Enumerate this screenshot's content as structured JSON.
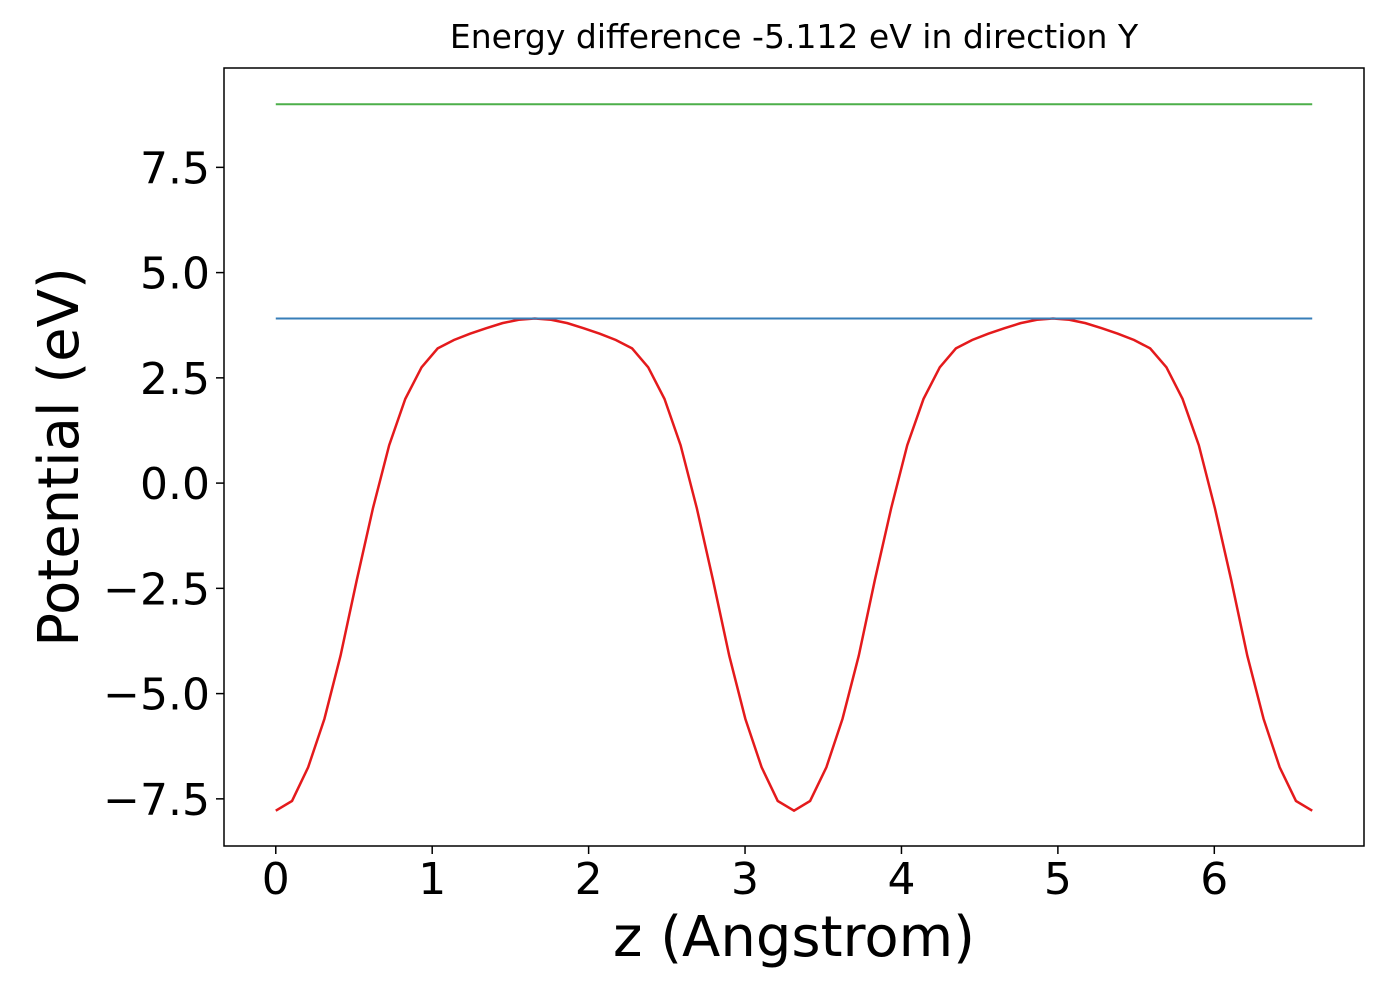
{
  "chart_data": {
    "type": "line",
    "title": "Energy difference -5.112 eV in direction Y",
    "xlabel": "z (Angstrom)",
    "ylabel": "Potential (eV)",
    "xlim": [
      -0.331,
      6.957
    ],
    "ylim": [
      -8.62,
      9.86
    ],
    "xticks": [
      0,
      1,
      2,
      3,
      4,
      5,
      6
    ],
    "yticks": [
      {
        "value": -7.5,
        "label": "−7.5"
      },
      {
        "value": -5,
        "label": "−5.0"
      },
      {
        "value": -2.5,
        "label": "−2.5"
      },
      {
        "value": 0,
        "label": "0.0"
      },
      2.5,
      {
        "value": 5,
        "label": "5.0"
      },
      7.5
    ],
    "grid": false,
    "series": [
      {
        "color": "#e41a1c",
        "x": [
          0,
          0.104,
          0.207,
          0.311,
          0.414,
          0.518,
          0.621,
          0.725,
          0.828,
          0.932,
          1.035,
          1.139,
          1.242,
          1.346,
          1.449,
          1.553,
          1.656,
          1.76,
          1.864,
          1.967,
          2.071,
          2.174,
          2.278,
          2.381,
          2.485,
          2.588,
          2.692,
          2.795,
          2.899,
          3.002,
          3.106,
          3.209,
          3.313,
          3.416,
          3.52,
          3.623,
          3.727,
          3.83,
          3.934,
          4.037,
          4.141,
          4.245,
          4.348,
          4.452,
          4.555,
          4.659,
          4.762,
          4.866,
          4.969,
          5.073,
          5.176,
          5.28,
          5.383,
          5.487,
          5.59,
          5.694,
          5.797,
          5.901,
          6.004,
          6.108,
          6.211,
          6.315,
          6.418,
          6.522,
          6.626
        ],
        "values": [
          -7.78,
          -7.55,
          -6.75,
          -5.6,
          -4.1,
          -2.3,
          -0.6,
          0.9,
          2.0,
          2.75,
          3.2,
          3.4,
          3.55,
          3.68,
          3.8,
          3.88,
          3.91,
          3.88,
          3.8,
          3.68,
          3.55,
          3.4,
          3.2,
          2.75,
          2.0,
          0.9,
          -0.6,
          -2.3,
          -4.1,
          -5.6,
          -6.75,
          -7.55,
          -7.78,
          -7.55,
          -6.75,
          -5.6,
          -4.1,
          -2.3,
          -0.6,
          0.9,
          2.0,
          2.75,
          3.2,
          3.4,
          3.55,
          3.68,
          3.8,
          3.88,
          3.91,
          3.88,
          3.8,
          3.68,
          3.55,
          3.4,
          3.2,
          2.75,
          2.0,
          0.9,
          -0.6,
          -2.3,
          -4.1,
          -5.6,
          -6.75,
          -7.55,
          -7.78
        ]
      },
      {
        "color": "#377eb8",
        "x": [
          0,
          6.626
        ],
        "values": [
          3.91,
          3.91
        ]
      },
      {
        "color": "#4daf4a",
        "x": [
          0,
          6.626
        ],
        "values": [
          9.0,
          9.0
        ]
      }
    ]
  }
}
